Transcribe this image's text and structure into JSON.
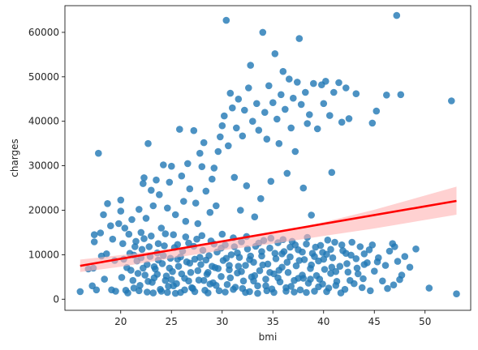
{
  "chart_data": {
    "type": "scatter",
    "xlabel": "bmi",
    "ylabel": "charges",
    "xlim": [
      14.5,
      54.5
    ],
    "ylim": [
      -2500,
      66000
    ],
    "xticks": [
      20,
      25,
      30,
      35,
      40,
      45,
      50
    ],
    "yticks": [
      0,
      10000,
      20000,
      30000,
      40000,
      50000,
      60000
    ],
    "x_tick_labels": [
      "20",
      "25",
      "30",
      "35",
      "40",
      "45",
      "50"
    ],
    "y_tick_labels": [
      "0",
      "10000",
      "20000",
      "30000",
      "40000",
      "50000",
      "60000"
    ],
    "grid": false,
    "point_color": "#1f77b4",
    "regression": {
      "color": "#ff0000",
      "ci_color": "#ffb2b2",
      "line": [
        [
          16.0,
          7500
        ],
        [
          53.1,
          22100
        ]
      ],
      "ci_upper": [
        [
          16.0,
          8900
        ],
        [
          20,
          9900
        ],
        [
          25,
          11200
        ],
        [
          30,
          12900
        ],
        [
          35,
          14800
        ],
        [
          40,
          17300
        ],
        [
          45,
          20100
        ],
        [
          53.1,
          25300
        ]
      ],
      "ci_lower": [
        [
          16.0,
          6100
        ],
        [
          20,
          7300
        ],
        [
          25,
          9200
        ],
        [
          30,
          11000
        ],
        [
          35,
          12500
        ],
        [
          40,
          14200
        ],
        [
          45,
          15900
        ],
        [
          53.1,
          19000
        ]
      ]
    },
    "points": [
      [
        16.0,
        1700
      ],
      [
        16.8,
        6800
      ],
      [
        17.2,
        3000
      ],
      [
        17.3,
        7000
      ],
      [
        17.4,
        14500
      ],
      [
        17.4,
        12900
      ],
      [
        17.6,
        2100
      ],
      [
        17.8,
        32800
      ],
      [
        18.0,
        14900
      ],
      [
        18.1,
        9700
      ],
      [
        18.3,
        19000
      ],
      [
        18.4,
        4500
      ],
      [
        18.6,
        10200
      ],
      [
        18.7,
        21500
      ],
      [
        19.0,
        16500
      ],
      [
        19.1,
        2100
      ],
      [
        19.2,
        13500
      ],
      [
        19.4,
        8700
      ],
      [
        19.5,
        1800
      ],
      [
        19.8,
        17000
      ],
      [
        20.0,
        19800
      ],
      [
        20.0,
        22300
      ],
      [
        20.2,
        12500
      ],
      [
        20.3,
        9000
      ],
      [
        20.4,
        16000
      ],
      [
        20.5,
        2000
      ],
      [
        20.8,
        14600
      ],
      [
        21.0,
        6500
      ],
      [
        21.1,
        17900
      ],
      [
        21.3,
        2500
      ],
      [
        21.5,
        13000
      ],
      [
        21.8,
        20200
      ],
      [
        22.0,
        15000
      ],
      [
        22.2,
        26000
      ],
      [
        22.3,
        27300
      ],
      [
        22.5,
        18200
      ],
      [
        22.7,
        35000
      ],
      [
        22.8,
        11800
      ],
      [
        23.0,
        24500
      ],
      [
        23.2,
        21000
      ],
      [
        23.3,
        7300
      ],
      [
        23.5,
        26800
      ],
      [
        23.7,
        12500
      ],
      [
        23.8,
        23500
      ],
      [
        24.0,
        16000
      ],
      [
        24.2,
        30200
      ],
      [
        24.4,
        4200
      ],
      [
        24.6,
        20500
      ],
      [
        24.8,
        26300
      ],
      [
        25.0,
        29900
      ],
      [
        25.2,
        14500
      ],
      [
        25.4,
        19000
      ],
      [
        25.6,
        9000
      ],
      [
        25.8,
        38200
      ],
      [
        26.0,
        27700
      ],
      [
        26.2,
        22000
      ],
      [
        26.4,
        17500
      ],
      [
        26.6,
        30500
      ],
      [
        26.8,
        24800
      ],
      [
        27.0,
        2600
      ],
      [
        27.2,
        37900
      ],
      [
        27.4,
        21600
      ],
      [
        27.6,
        17000
      ],
      [
        27.8,
        32800
      ],
      [
        28.0,
        29800
      ],
      [
        28.2,
        35200
      ],
      [
        28.4,
        24300
      ],
      [
        28.6,
        6000
      ],
      [
        28.8,
        19500
      ],
      [
        29.0,
        27000
      ],
      [
        29.2,
        29500
      ],
      [
        29.4,
        21000
      ],
      [
        29.6,
        33200
      ],
      [
        29.8,
        36500
      ],
      [
        30.0,
        39000
      ],
      [
        30.2,
        41200
      ],
      [
        30.4,
        62700
      ],
      [
        30.6,
        34500
      ],
      [
        30.8,
        46300
      ],
      [
        31.0,
        43000
      ],
      [
        31.2,
        27400
      ],
      [
        31.4,
        38500
      ],
      [
        31.6,
        45000
      ],
      [
        31.8,
        20000
      ],
      [
        32.0,
        36700
      ],
      [
        32.2,
        42500
      ],
      [
        32.4,
        25500
      ],
      [
        32.6,
        47500
      ],
      [
        32.8,
        52600
      ],
      [
        33.0,
        40000
      ],
      [
        33.2,
        18500
      ],
      [
        33.4,
        44000
      ],
      [
        33.6,
        38000
      ],
      [
        33.8,
        22600
      ],
      [
        34.0,
        60000
      ],
      [
        34.2,
        42000
      ],
      [
        34.4,
        36000
      ],
      [
        34.6,
        48000
      ],
      [
        34.8,
        26500
      ],
      [
        35.0,
        44200
      ],
      [
        35.2,
        55200
      ],
      [
        35.4,
        40500
      ],
      [
        35.6,
        35000
      ],
      [
        35.8,
        46000
      ],
      [
        36.0,
        51200
      ],
      [
        36.2,
        42700
      ],
      [
        36.4,
        28300
      ],
      [
        36.6,
        49500
      ],
      [
        36.8,
        38500
      ],
      [
        37.0,
        45200
      ],
      [
        37.2,
        33200
      ],
      [
        37.4,
        48800
      ],
      [
        37.6,
        58600
      ],
      [
        37.8,
        43800
      ],
      [
        38.0,
        25000
      ],
      [
        38.2,
        46500
      ],
      [
        38.4,
        39500
      ],
      [
        38.6,
        41500
      ],
      [
        38.8,
        18900
      ],
      [
        39.0,
        48500
      ],
      [
        39.4,
        38300
      ],
      [
        39.8,
        48200
      ],
      [
        40.0,
        44000
      ],
      [
        40.2,
        49000
      ],
      [
        40.6,
        41300
      ],
      [
        40.8,
        28500
      ],
      [
        41.0,
        46500
      ],
      [
        41.5,
        48700
      ],
      [
        41.8,
        39800
      ],
      [
        42.2,
        47500
      ],
      [
        42.5,
        40600
      ],
      [
        43.2,
        46200
      ],
      [
        44.0,
        7800
      ],
      [
        44.8,
        39600
      ],
      [
        45.2,
        42300
      ],
      [
        46.2,
        45900
      ],
      [
        46.8,
        12500
      ],
      [
        47.2,
        63800
      ],
      [
        47.6,
        46000
      ],
      [
        48.0,
        9600
      ],
      [
        48.5,
        7200
      ],
      [
        49.1,
        11300
      ],
      [
        50.4,
        2500
      ],
      [
        52.6,
        44600
      ],
      [
        53.1,
        1200
      ],
      [
        21.2,
        4200
      ],
      [
        21.6,
        8600
      ],
      [
        21.9,
        3100
      ],
      [
        22.1,
        11200
      ],
      [
        22.4,
        5400
      ],
      [
        22.6,
        1600
      ],
      [
        22.9,
        9600
      ],
      [
        23.1,
        3800
      ],
      [
        23.4,
        6800
      ],
      [
        23.6,
        10400
      ],
      [
        23.9,
        2200
      ],
      [
        24.1,
        8000
      ],
      [
        24.3,
        12000
      ],
      [
        24.5,
        5200
      ],
      [
        24.7,
        2900
      ],
      [
        24.9,
        9200
      ],
      [
        25.1,
        6200
      ],
      [
        25.3,
        11600
      ],
      [
        25.5,
        3500
      ],
      [
        25.7,
        7400
      ],
      [
        25.9,
        1500
      ],
      [
        26.1,
        10800
      ],
      [
        26.3,
        4700
      ],
      [
        26.5,
        8400
      ],
      [
        26.7,
        12600
      ],
      [
        26.9,
        6000
      ],
      [
        27.1,
        2400
      ],
      [
        27.3,
        9000
      ],
      [
        27.5,
        13500
      ],
      [
        27.7,
        4300
      ],
      [
        27.9,
        7800
      ],
      [
        28.1,
        11000
      ],
      [
        28.3,
        2000
      ],
      [
        28.5,
        5600
      ],
      [
        28.7,
        9800
      ],
      [
        28.9,
        13100
      ],
      [
        29.1,
        3700
      ],
      [
        29.3,
        7100
      ],
      [
        29.5,
        10600
      ],
      [
        29.7,
        1900
      ],
      [
        29.9,
        5100
      ],
      [
        30.1,
        8700
      ],
      [
        30.3,
        12200
      ],
      [
        30.5,
        3300
      ],
      [
        30.7,
        6600
      ],
      [
        30.9,
        10000
      ],
      [
        31.1,
        13800
      ],
      [
        31.3,
        2700
      ],
      [
        31.5,
        5900
      ],
      [
        31.7,
        9400
      ],
      [
        31.9,
        12900
      ],
      [
        32.1,
        4100
      ],
      [
        32.3,
        7600
      ],
      [
        32.5,
        11300
      ],
      [
        32.7,
        1700
      ],
      [
        32.9,
        5000
      ],
      [
        33.1,
        8300
      ],
      [
        33.3,
        11900
      ],
      [
        33.5,
        3000
      ],
      [
        33.7,
        6400
      ],
      [
        33.9,
        9700
      ],
      [
        34.1,
        13200
      ],
      [
        34.3,
        4500
      ],
      [
        34.5,
        7900
      ],
      [
        34.7,
        11500
      ],
      [
        34.9,
        2300
      ],
      [
        35.1,
        5700
      ],
      [
        35.3,
        9100
      ],
      [
        35.5,
        12700
      ],
      [
        35.7,
        3900
      ],
      [
        35.9,
        7200
      ],
      [
        36.1,
        10700
      ],
      [
        36.3,
        2600
      ],
      [
        36.5,
        6000
      ],
      [
        36.7,
        9500
      ],
      [
        36.9,
        13000
      ],
      [
        37.1,
        4200
      ],
      [
        37.3,
        7500
      ],
      [
        37.5,
        11100
      ],
      [
        37.7,
        2100
      ],
      [
        37.9,
        5400
      ],
      [
        38.1,
        8900
      ],
      [
        38.3,
        12400
      ],
      [
        38.5,
        3600
      ],
      [
        38.7,
        6900
      ],
      [
        38.9,
        10300
      ],
      [
        39.1,
        1800
      ],
      [
        39.3,
        5300
      ],
      [
        39.5,
        8600
      ],
      [
        39.7,
        12100
      ],
      [
        39.9,
        3400
      ],
      [
        40.1,
        6700
      ],
      [
        40.3,
        10100
      ],
      [
        40.5,
        2500
      ],
      [
        40.7,
        5800
      ],
      [
        40.9,
        9300
      ],
      [
        41.1,
        12800
      ],
      [
        41.3,
        4000
      ],
      [
        41.6,
        7400
      ],
      [
        41.9,
        10900
      ],
      [
        42.1,
        2200
      ],
      [
        42.4,
        6100
      ],
      [
        42.7,
        9900
      ],
      [
        43.0,
        3500
      ],
      [
        43.3,
        7000
      ],
      [
        43.6,
        11800
      ],
      [
        43.9,
        4600
      ],
      [
        44.3,
        8200
      ],
      [
        44.6,
        1900
      ],
      [
        45.0,
        6300
      ],
      [
        45.4,
        9300
      ],
      [
        45.8,
        4100
      ],
      [
        46.1,
        7600
      ],
      [
        46.5,
        10800
      ],
      [
        46.9,
        3200
      ],
      [
        47.3,
        8500
      ],
      [
        47.7,
        5400
      ],
      [
        20.6,
        7100
      ],
      [
        20.9,
        10300
      ],
      [
        21.4,
        11800
      ],
      [
        21.7,
        5800
      ],
      [
        22.0,
        9300
      ],
      [
        22.3,
        13600
      ],
      [
        22.6,
        7800
      ],
      [
        23.0,
        14200
      ],
      [
        23.3,
        4800
      ],
      [
        23.7,
        8800
      ],
      [
        24.0,
        1800
      ],
      [
        24.4,
        14700
      ],
      [
        24.8,
        7000
      ],
      [
        25.2,
        3000
      ],
      [
        25.6,
        12300
      ],
      [
        26.0,
        5700
      ],
      [
        26.4,
        14000
      ],
      [
        26.8,
        8100
      ],
      [
        27.2,
        11900
      ],
      [
        27.6,
        6400
      ],
      [
        28.0,
        14300
      ],
      [
        28.4,
        8800
      ],
      [
        28.8,
        3400
      ],
      [
        29.2,
        12400
      ],
      [
        29.6,
        6900
      ],
      [
        30.0,
        14600
      ],
      [
        30.4,
        9200
      ],
      [
        30.8,
        4800
      ],
      [
        31.2,
        11800
      ],
      [
        31.6,
        7400
      ],
      [
        32.0,
        2400
      ],
      [
        32.4,
        14100
      ],
      [
        32.8,
        9700
      ],
      [
        33.2,
        5300
      ],
      [
        33.6,
        12600
      ],
      [
        34.0,
        7700
      ],
      [
        34.4,
        1900
      ],
      [
        34.8,
        13700
      ],
      [
        35.2,
        10300
      ],
      [
        35.6,
        6500
      ],
      [
        36.0,
        13400
      ],
      [
        36.4,
        8300
      ],
      [
        36.8,
        2900
      ],
      [
        37.2,
        12200
      ],
      [
        37.6,
        8700
      ],
      [
        38.0,
        4700
      ],
      [
        38.4,
        13900
      ],
      [
        38.8,
        7700
      ],
      [
        39.2,
        11700
      ],
      [
        39.6,
        4500
      ],
      [
        40.0,
        9000
      ],
      [
        40.4,
        13300
      ],
      [
        40.8,
        7200
      ],
      [
        41.2,
        3100
      ],
      [
        41.8,
        12200
      ],
      [
        42.3,
        8000
      ],
      [
        42.8,
        12800
      ],
      [
        43.4,
        5700
      ],
      [
        44.0,
        10200
      ],
      [
        44.8,
        12200
      ],
      [
        20.1,
        4900
      ],
      [
        20.7,
        1400
      ],
      [
        21.3,
        9900
      ],
      [
        21.8,
        1900
      ],
      [
        22.2,
        7000
      ],
      [
        22.7,
        4000
      ],
      [
        23.2,
        1400
      ],
      [
        23.6,
        5600
      ],
      [
        24.2,
        9800
      ],
      [
        24.6,
        1500
      ],
      [
        25.0,
        4400
      ],
      [
        25.4,
        1300
      ],
      [
        25.9,
        9500
      ],
      [
        26.3,
        2100
      ],
      [
        26.7,
        4100
      ],
      [
        27.3,
        1700
      ],
      [
        27.8,
        9400
      ],
      [
        28.2,
        4200
      ],
      [
        28.6,
        1400
      ],
      [
        29.0,
        7400
      ],
      [
        29.4,
        3100
      ],
      [
        29.9,
        11500
      ],
      [
        30.3,
        1600
      ],
      [
        30.7,
        7600
      ],
      [
        31.1,
        2200
      ],
      [
        31.5,
        10400
      ],
      [
        31.9,
        6200
      ],
      [
        32.3,
        1500
      ],
      [
        32.7,
        8900
      ],
      [
        33.1,
        4100
      ],
      [
        33.5,
        1300
      ],
      [
        33.9,
        10700
      ],
      [
        34.3,
        3000
      ],
      [
        34.7,
        6000
      ],
      [
        35.1,
        1500
      ],
      [
        35.5,
        4800
      ],
      [
        35.9,
        10200
      ],
      [
        36.3,
        1800
      ],
      [
        36.7,
        11700
      ],
      [
        37.1,
        1600
      ],
      [
        37.5,
        4700
      ],
      [
        37.9,
        10600
      ],
      [
        38.3,
        1500
      ],
      [
        38.7,
        4500
      ],
      [
        39.1,
        9600
      ],
      [
        39.5,
        2800
      ],
      [
        39.9,
        10500
      ],
      [
        40.3,
        1700
      ],
      [
        40.7,
        11200
      ],
      [
        41.2,
        6200
      ],
      [
        41.7,
        1400
      ],
      [
        42.2,
        10300
      ],
      [
        42.6,
        4200
      ],
      [
        43.2,
        9100
      ],
      [
        43.8,
        2600
      ],
      [
        44.5,
        11100
      ],
      [
        45.3,
        8400
      ],
      [
        46.3,
        2400
      ],
      [
        47.0,
        11800
      ],
      [
        47.5,
        4400
      ]
    ]
  }
}
